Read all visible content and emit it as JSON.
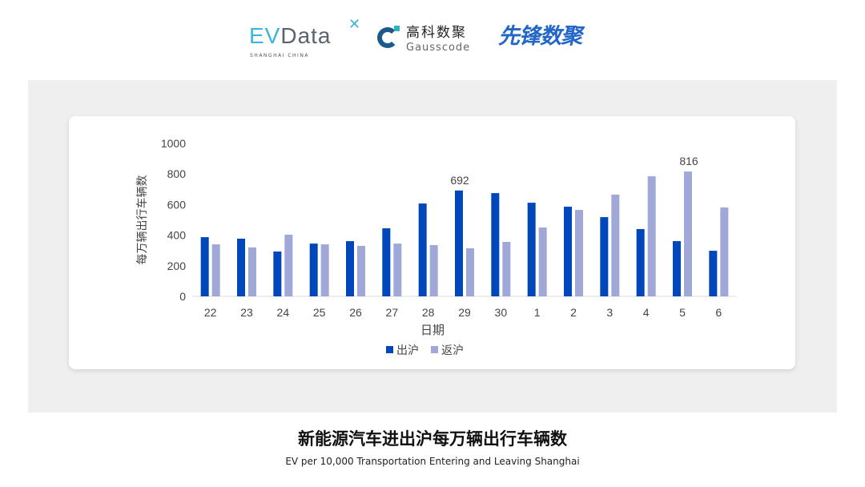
{
  "logos": {
    "evdata": {
      "ev": "EV",
      "rest": "Data",
      "sub": "SHANGHAI CHINA"
    },
    "gausscode": {
      "cn": "高科数聚",
      "en": "Gausscode"
    },
    "xianfeng": "先锋数聚"
  },
  "footer": {
    "title": "新能源汽车进出沪每万辆出行车辆数",
    "subtitle": "EV per 10,000 Transportation Entering and Leaving Shanghai"
  },
  "chart_data": {
    "type": "bar",
    "title": "",
    "xlabel": "日期",
    "ylabel": "每万辆出行车辆数",
    "ylim": [
      0,
      1000
    ],
    "yticks": [
      0,
      200,
      400,
      600,
      800,
      1000
    ],
    "grid": false,
    "legend": "bottom",
    "categories": [
      "22",
      "23",
      "24",
      "25",
      "26",
      "27",
      "28",
      "29",
      "30",
      "1",
      "2",
      "3",
      "4",
      "5",
      "6"
    ],
    "series": [
      {
        "name": "出沪",
        "color": "#0047bb",
        "values": [
          387,
          377,
          293,
          345,
          361,
          445,
          607,
          692,
          675,
          612,
          586,
          518,
          440,
          361,
          298
        ]
      },
      {
        "name": "返沪",
        "color": "#a0a8d8",
        "values": [
          340,
          320,
          403,
          340,
          330,
          345,
          335,
          314,
          356,
          450,
          565,
          665,
          785,
          816,
          581
        ]
      }
    ],
    "data_labels": [
      {
        "series": 0,
        "category": "29",
        "text": "692"
      },
      {
        "series": 1,
        "category": "5",
        "text": "816"
      }
    ]
  }
}
